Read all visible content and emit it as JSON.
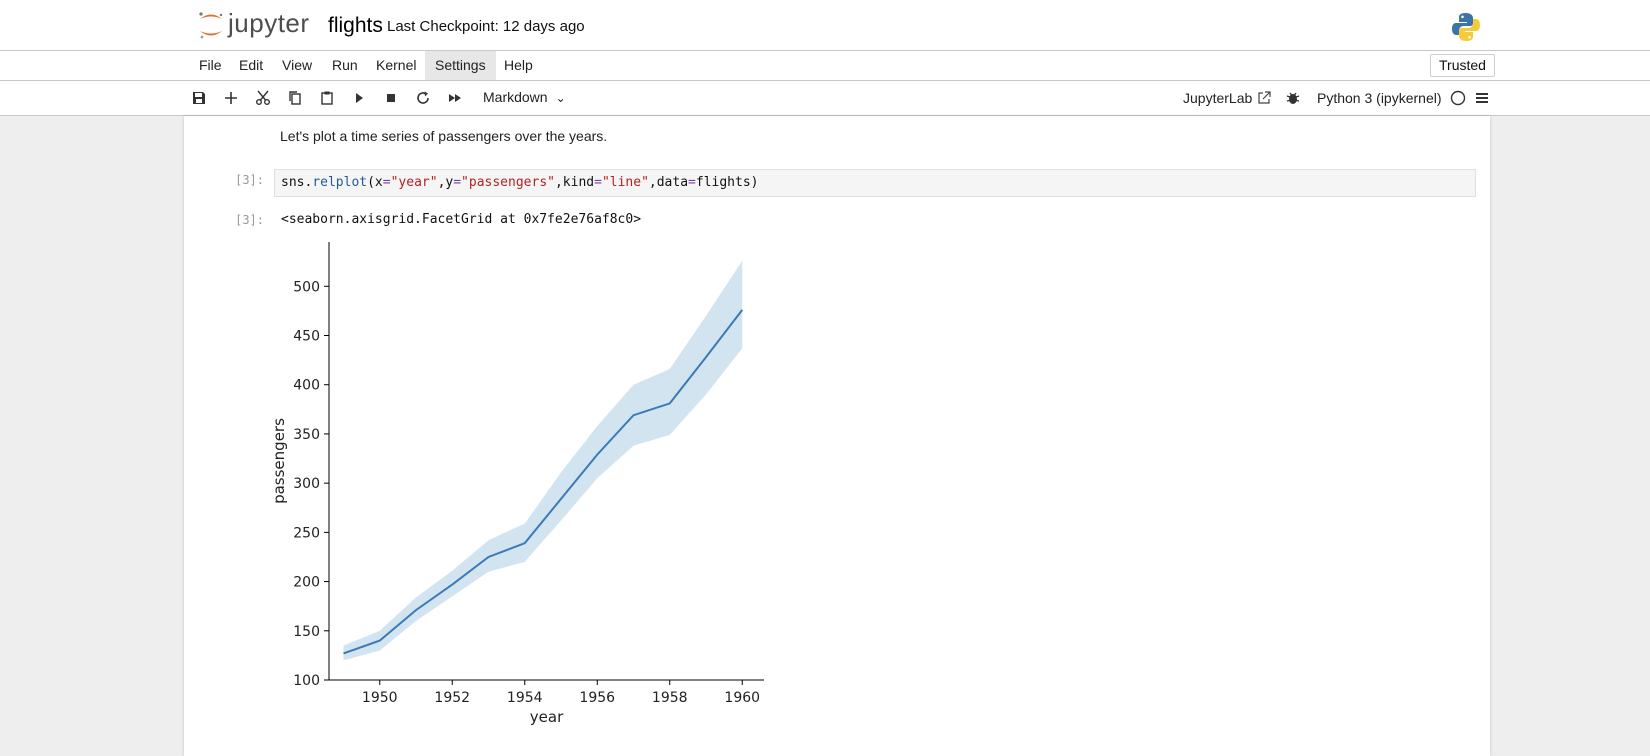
{
  "header": {
    "logo_text": "jupyter",
    "notebook_name": "flights",
    "checkpoint": "Last Checkpoint: 12 days ago"
  },
  "menu": {
    "items": [
      "File",
      "Edit",
      "View",
      "Run",
      "Kernel",
      "Settings",
      "Help"
    ],
    "active": "Settings",
    "trusted": "Trusted"
  },
  "toolbar": {
    "buttons": [
      "save-icon",
      "add-cell-icon",
      "cut-icon",
      "copy-icon",
      "paste-icon",
      "run-icon",
      "stop-icon",
      "restart-icon",
      "fast-forward-icon"
    ],
    "cell_type": "Markdown",
    "jupyterlab_label": "JupyterLab",
    "kernel_name": "Python 3 (ipykernel)"
  },
  "notebook": {
    "markdown_text": "Let's plot a time series of passengers over the years.",
    "in_prompt": "[3]:",
    "out_prompt": "[3]:",
    "code": {
      "part1": "sns.",
      "fn": "relplot",
      "part2": "(x",
      "eq": "=",
      "s1": "\"year\"",
      "c1": ",y",
      "s2": "\"passengers\"",
      "c2": ",kind",
      "s3": "\"line\"",
      "c3": ",data",
      "c4": "flights)"
    },
    "output_repr": "<seaborn.axisgrid.FacetGrid at 0x7fe2e76af8c0>"
  },
  "chart_data": {
    "type": "line",
    "xlabel": "year",
    "ylabel": "passengers",
    "xlim": [
      1948.6,
      1960.6
    ],
    "ylim": [
      100,
      545
    ],
    "xticks": [
      1950,
      1952,
      1954,
      1956,
      1958,
      1960
    ],
    "yticks": [
      100,
      150,
      200,
      250,
      300,
      350,
      400,
      450,
      500
    ],
    "line_color": "#3a7ab6",
    "band_color": "#aecde6",
    "series": [
      {
        "x": [
          1949,
          1950,
          1951,
          1952,
          1953,
          1954,
          1955,
          1956,
          1957,
          1958,
          1959,
          1960
        ],
        "values": [
          127,
          140,
          171,
          197,
          225,
          239,
          284,
          329,
          369,
          381,
          428,
          476
        ],
        "ci_low": [
          120,
          130,
          160,
          185,
          210,
          220,
          262,
          305,
          338,
          349,
          390,
          437
        ],
        "ci_high": [
          135,
          150,
          184,
          211,
          242,
          259,
          311,
          358,
          400,
          416,
          470,
          526
        ]
      }
    ]
  }
}
